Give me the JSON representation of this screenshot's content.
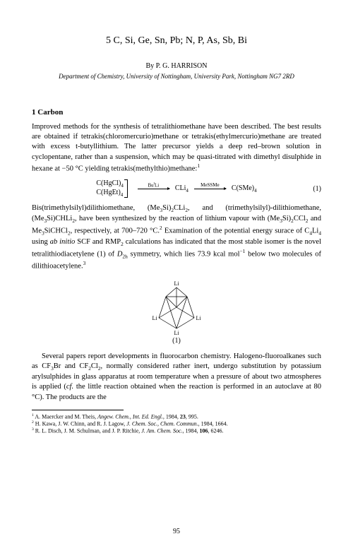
{
  "paper": {
    "chapter_title": "5   C, Si, Ge, Sn, Pb; N, P, As, Sb, Bi",
    "byline": "By P. G. HARRISON",
    "affiliation": "Department of Chemistry, University of Nottingham, University Park, Nottingham NG7 2RD",
    "section_heading": "1 Carbon",
    "para1_html": "Improved methods for the synthesis of tetralithiomethane have been described. The best results are obtained if tetrakis(chloromercurio)methane or tetrakis(ethylmercurio)methane are treated with excess t-butyllithium. The latter precursor yields a deep red–brown solution in cyclopentane, rather than a suspension, which may be quasi-titrated with dimethyl disulphide in hexane at −50 °C yielding tetrakis(methylthio)methane:<sup>1</sup>",
    "eq1": {
      "left_top": "C(HgCl)<sub>4</sub>",
      "left_bottom": "C(HgEt)<sub>4</sub>",
      "arrow1_label": "Bu<sup>t</sup>Li",
      "mid": "CLi<sub>4</sub>",
      "arrow2_label": "MeSSMe",
      "right": "C(SMe)<sub>4</sub>",
      "number": "(1)"
    },
    "para2_html": "Bis(trimethylsilyl)dilithiomethane, (Me<sub>3</sub>Si)<sub>2</sub>CLi<sub>2</sub>, and (trimethylsilyl)-dilithiomethane, (Me<sub>3</sub>Si)CHLi<sub>2</sub>, have been synthesized by the reaction of lithium vapour with (Me<sub>3</sub>Si)<sub>2</sub>CCl<sub>2</sub> and Me<sub>3</sub>SiCHCl<sub>2</sub>, respectively, at 700–720 °C.<sup>2</sup> Examination of the potential energy surace of C<sub>4</sub>Li<sub>4</sub> using <i>ab initio</i> SCF and RMP<sub>2</sub> calculations has indicated that the most stable isomer is the novel tetralithiodiacetylene (1) of <i>D</i><sub>2h</sub> symmetry, which lies 73.9 kcal mol<sup>−1</sup> below two molecules of dilithioacetylene.<sup>3</sup>",
    "diagram": {
      "labels": [
        "Li",
        "Li",
        "Li",
        "Li"
      ],
      "caption": "(1)",
      "stroke_color": "#000000",
      "stroke_width": 0.7,
      "font_size": 8
    },
    "para3_html": "Several papers report developments in fluorocarbon chemistry. Halogeno-fluoroalkanes such as CF<sub>3</sub>Br and CF<sub>2</sub>Cl<sub>2</sub>, normally considered rather inert, undergo substitution by potassium arylsulphides in glass apparatus at room temperature when a pressure of about two atmospheres is applied (<i>cf.</i> the little reaction obtained when the reaction is performed in an autoclave at 80 °C). The products are the",
    "footnotes": [
      "<sup>1</sup> A. Maercker and M. Theis, <i>Angew. Chem., Int. Ed. Engl.</i>, 1984, <b>23</b>, 995.",
      "<sup>2</sup> H. Kawa, J. W. Chinn, and R. J. Lagow, <i>J. Chem. Soc., Chem. Commun.</i>, 1984, 1664.",
      "<sup>3</sup> R. L. Disch, J. M. Schulman, and J. P. Ritchie, <i>J. Am. Chem. Soc.</i>, 1984, <b>106</b>, 6246."
    ],
    "page_number": "95"
  }
}
